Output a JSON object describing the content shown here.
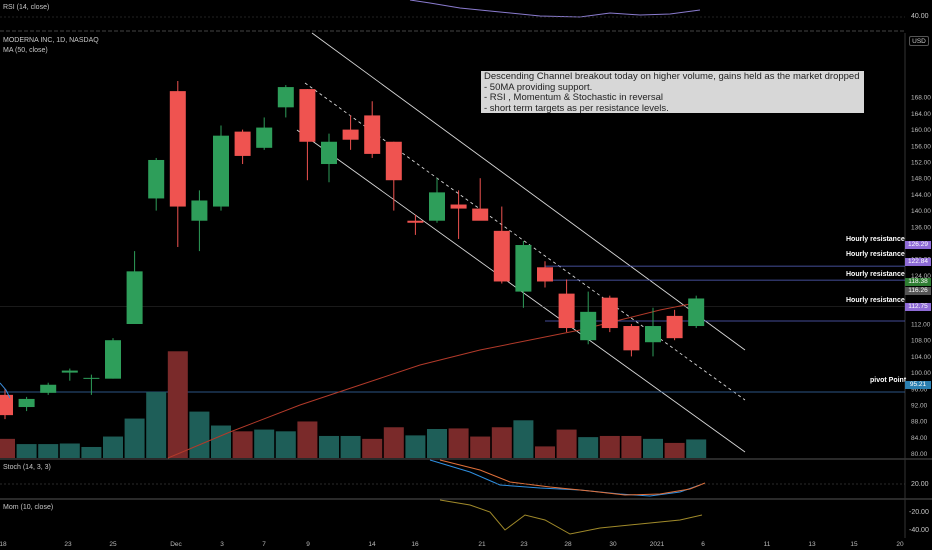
{
  "panels": {
    "rsi": {
      "title": "RSI (14, close)",
      "right_ticks": [
        "40.00"
      ]
    },
    "main": {
      "title": "MODERNA INC, 1D, NASDAQ",
      "ma_label": "MA (50, close)",
      "currency": "USD"
    },
    "stoch": {
      "title": "Stoch (14, 3, 3)",
      "right_ticks": [
        "20.00"
      ]
    },
    "mom": {
      "title": "Mom (10, close)",
      "right_ticks": [
        "-20.00",
        "-40.00"
      ]
    }
  },
  "annotation": {
    "lines": [
      "Descending Channel breakout today on higher volume, gains held as the market dropped",
      "- 50MA providing support.",
      "- RSI , Momentum & Stochastic in reversal",
      "- short term targets as per resistance levels."
    ]
  },
  "levels": [
    {
      "label": "Hourly resistance",
      "value": 126.29,
      "tag": "126.29"
    },
    {
      "label": "Hourly resistance",
      "value": 122.84,
      "tag": "122.84"
    },
    {
      "label": "Hourly resistance",
      "value": 112.75,
      "tag": "112.75"
    },
    {
      "label": "pivot Point",
      "value": 95.21,
      "tag": "95.21"
    }
  ],
  "extra_label": {
    "label": "Hourly resistance"
  },
  "price_tags": [
    {
      "value": 118.38,
      "tag": "118.38",
      "color": "#2e7d32"
    },
    {
      "value": 116.26,
      "tag": "116.26",
      "color": "#555555"
    }
  ],
  "colors": {
    "up": "#2e9e5a",
    "down": "#ef5350",
    "vol_up": "#1e5e58",
    "vol_down": "#7a2a2a",
    "ma": "#b23a2a",
    "level_line": "#5a66c8",
    "pivot_line": "#3a6fb0",
    "level_tag": "#8e6bd6",
    "pivot_tag": "#2b7fb0"
  },
  "chart_data": {
    "type": "candlestick",
    "title": "MODERNA INC, 1D, NASDAQ",
    "ylim": [
      78,
      172
    ],
    "y_ticks": [
      80,
      84,
      88,
      92,
      96,
      100,
      104,
      108,
      112,
      116,
      120,
      124,
      128,
      132,
      136,
      140,
      144,
      148,
      152,
      156,
      160,
      164,
      168
    ],
    "x_tick_labels": [
      "18",
      "23",
      "25",
      "Dec",
      "3",
      "7",
      "9",
      "14",
      "16",
      "21",
      "23",
      "28",
      "30",
      "2021",
      "6",
      "11",
      "13",
      "15",
      "20"
    ],
    "ohlc": [
      {
        "o": 94.5,
        "h": 96,
        "l": 88.5,
        "c": 89.5
      },
      {
        "o": 91.5,
        "h": 94,
        "l": 90.5,
        "c": 93.5
      },
      {
        "o": 95,
        "h": 97.5,
        "l": 94.5,
        "c": 97
      },
      {
        "o": 100,
        "h": 101,
        "l": 98,
        "c": 100.5
      },
      {
        "o": 98.5,
        "h": 99.5,
        "l": 94.5,
        "c": 98.7
      },
      {
        "o": 98.5,
        "h": 108.5,
        "l": 98.5,
        "c": 108
      },
      {
        "o": 112,
        "h": 130,
        "l": 112,
        "c": 125
      },
      {
        "o": 143,
        "h": 153,
        "l": 140,
        "c": 152.5
      },
      {
        "o": 169.5,
        "h": 172,
        "l": 131,
        "c": 141
      },
      {
        "o": 137.5,
        "h": 145,
        "l": 130,
        "c": 142.5
      },
      {
        "o": 141,
        "h": 161,
        "l": 140,
        "c": 158.5
      },
      {
        "o": 159.5,
        "h": 160,
        "l": 151.5,
        "c": 153.5
      },
      {
        "o": 155.5,
        "h": 163,
        "l": 155,
        "c": 160.5
      },
      {
        "o": 165.5,
        "h": 171,
        "l": 163,
        "c": 170.5
      },
      {
        "o": 170,
        "h": 170,
        "l": 147.5,
        "c": 157
      },
      {
        "o": 151.5,
        "h": 159,
        "l": 147,
        "c": 157
      },
      {
        "o": 160,
        "h": 163.5,
        "l": 155,
        "c": 157.5
      },
      {
        "o": 163.5,
        "h": 167,
        "l": 153,
        "c": 154
      },
      {
        "o": 157,
        "h": 157,
        "l": 140,
        "c": 147.5
      },
      {
        "o": 137.5,
        "h": 139,
        "l": 134,
        "c": 137
      },
      {
        "o": 137.5,
        "h": 148,
        "l": 137,
        "c": 144.5
      },
      {
        "o": 141.5,
        "h": 145,
        "l": 133,
        "c": 140.5
      },
      {
        "o": 140.5,
        "h": 148,
        "l": 138,
        "c": 137.5
      },
      {
        "o": 135,
        "h": 141,
        "l": 122,
        "c": 122.5
      },
      {
        "o": 120,
        "h": 132.5,
        "l": 116,
        "c": 131.5
      },
      {
        "o": 126,
        "h": 127.5,
        "l": 121,
        "c": 122.5
      },
      {
        "o": 119.5,
        "h": 123,
        "l": 110,
        "c": 111
      },
      {
        "o": 108,
        "h": 120,
        "l": 107,
        "c": 115
      },
      {
        "o": 118.5,
        "h": 119,
        "l": 110,
        "c": 111
      },
      {
        "o": 111.5,
        "h": 112,
        "l": 104,
        "c": 105.5
      },
      {
        "o": 107.5,
        "h": 116,
        "l": 104,
        "c": 111.5
      },
      {
        "o": 114,
        "h": 115.5,
        "l": 108,
        "c": 108.5
      },
      {
        "o": 111.5,
        "h": 119,
        "l": 111,
        "c": 118.3
      }
    ],
    "volume": [
      {
        "v": 33,
        "up": false
      },
      {
        "v": 24,
        "up": true
      },
      {
        "v": 24,
        "up": true
      },
      {
        "v": 25,
        "up": true
      },
      {
        "v": 19,
        "up": true
      },
      {
        "v": 37,
        "up": true
      },
      {
        "v": 68,
        "up": true
      },
      {
        "v": 114,
        "up": true
      },
      {
        "v": 184,
        "up": false
      },
      {
        "v": 80,
        "up": true
      },
      {
        "v": 56,
        "up": true
      },
      {
        "v": 46,
        "up": false
      },
      {
        "v": 49,
        "up": true
      },
      {
        "v": 46,
        "up": true
      },
      {
        "v": 63,
        "up": false
      },
      {
        "v": 38,
        "up": true
      },
      {
        "v": 38,
        "up": true
      },
      {
        "v": 33,
        "up": false
      },
      {
        "v": 53,
        "up": false
      },
      {
        "v": 39,
        "up": true
      },
      {
        "v": 50,
        "up": true
      },
      {
        "v": 51,
        "up": false
      },
      {
        "v": 37,
        "up": false
      },
      {
        "v": 53,
        "up": false
      },
      {
        "v": 65,
        "up": true
      },
      {
        "v": 20,
        "up": false
      },
      {
        "v": 49,
        "up": false
      },
      {
        "v": 36,
        "up": true
      },
      {
        "v": 38,
        "up": false
      },
      {
        "v": 38,
        "up": false
      },
      {
        "v": 33,
        "up": true
      },
      {
        "v": 26,
        "up": false
      },
      {
        "v": 32,
        "up": true
      }
    ]
  }
}
